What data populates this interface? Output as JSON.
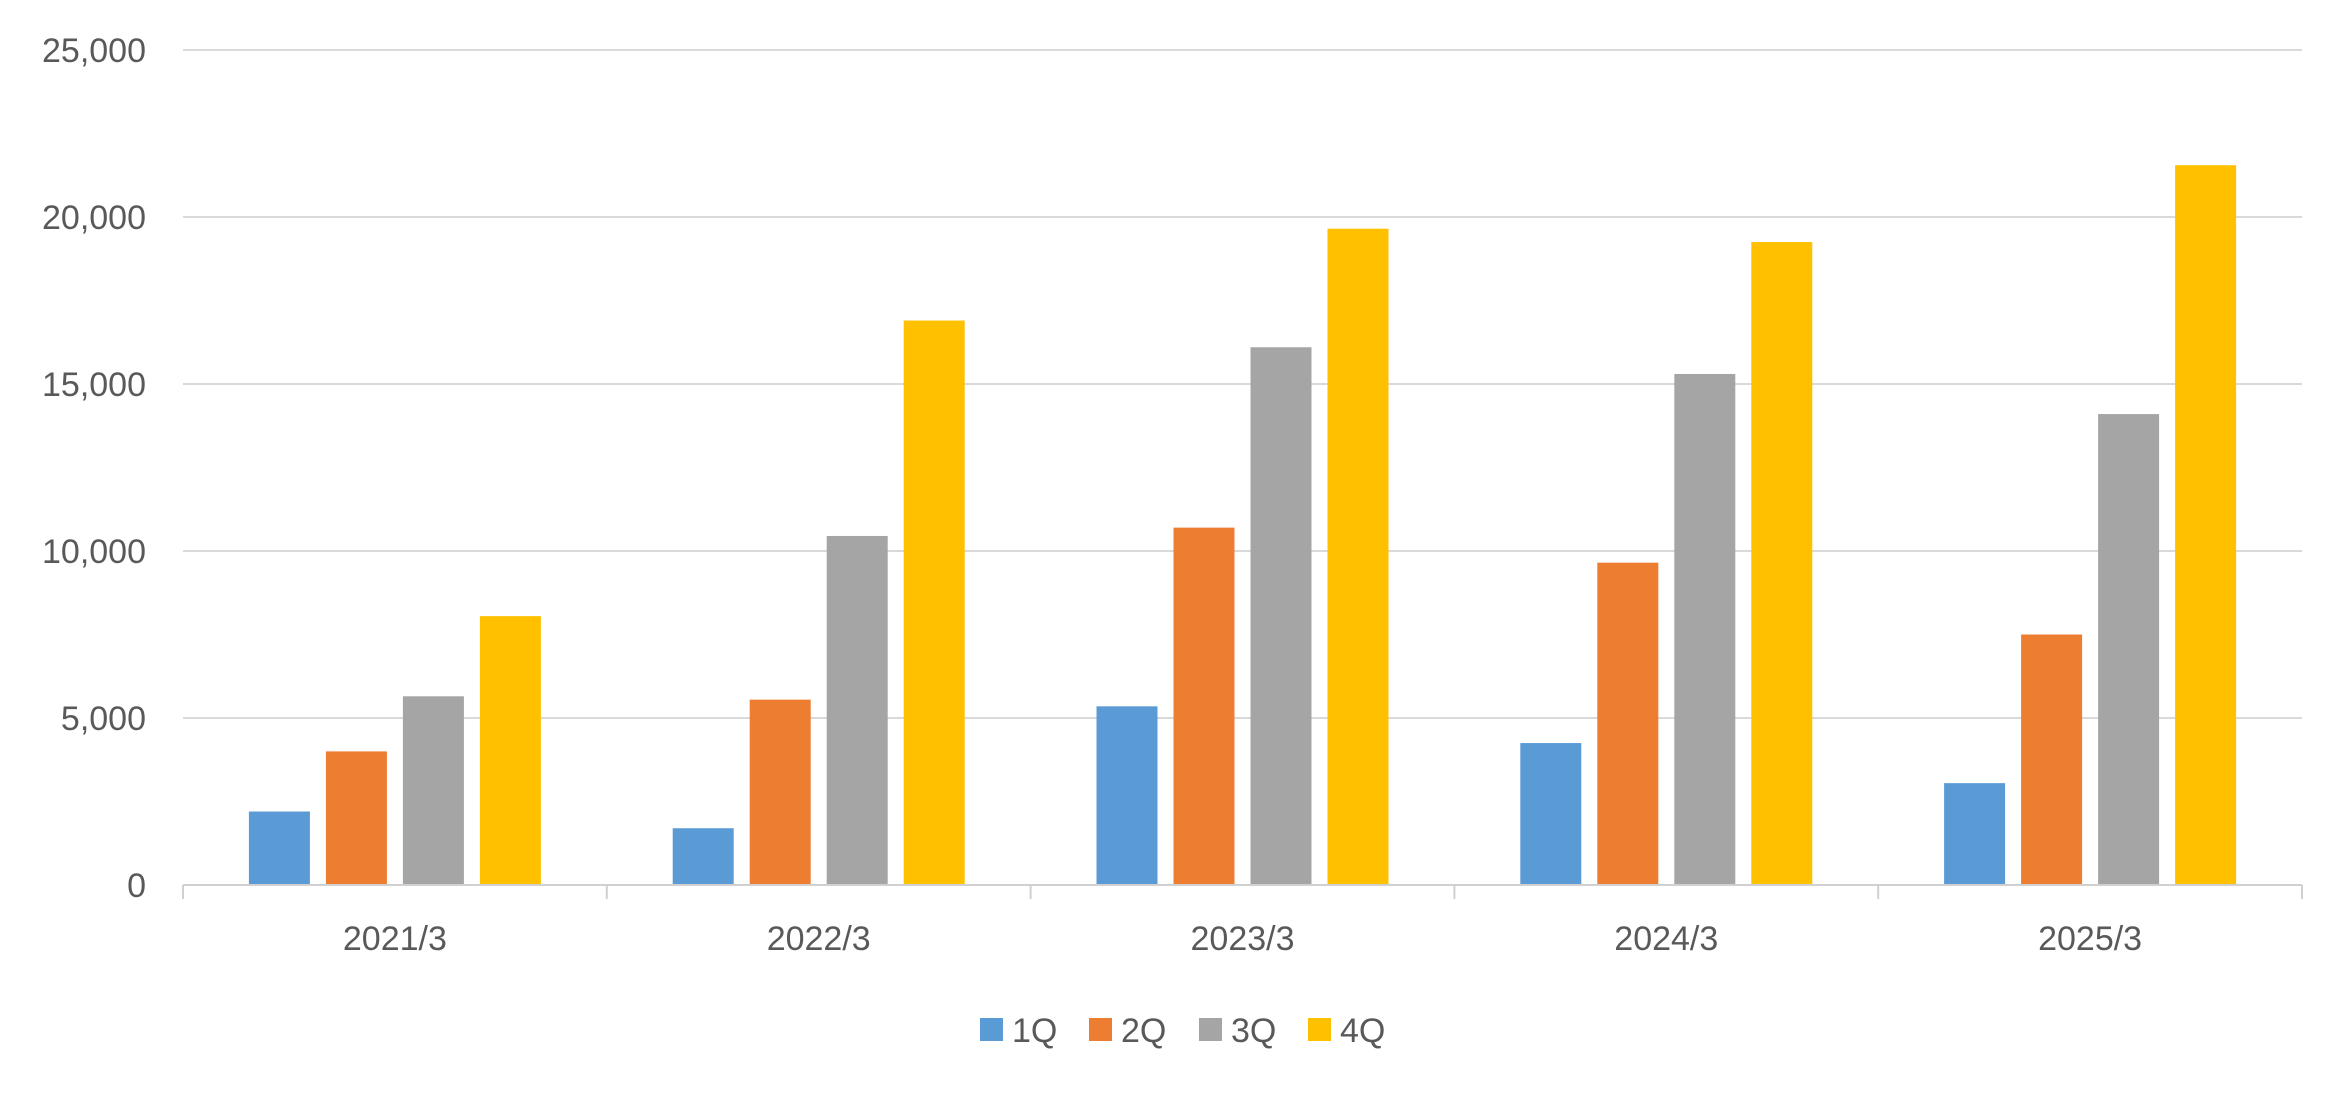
{
  "chart_data": {
    "type": "bar",
    "categories": [
      "2021/3",
      "2022/3",
      "2023/3",
      "2024/3",
      "2025/3"
    ],
    "series": [
      {
        "name": "1Q",
        "color": "#5b9bd5",
        "values": [
          2200,
          1700,
          5350,
          4250,
          3050
        ]
      },
      {
        "name": "2Q",
        "color": "#ed7d31",
        "values": [
          4000,
          5550,
          10700,
          9650,
          7500
        ]
      },
      {
        "name": "3Q",
        "color": "#a5a5a5",
        "values": [
          5650,
          10450,
          16100,
          15300,
          14100
        ]
      },
      {
        "name": "4Q",
        "color": "#ffc000",
        "values": [
          8050,
          16900,
          19650,
          19250,
          21550
        ]
      }
    ],
    "yticks": [
      "0",
      "5,000",
      "10,000",
      "15,000",
      "20,000",
      "25,000"
    ],
    "ylim": [
      0,
      25000
    ],
    "grid": true,
    "legend": "bottom-center"
  }
}
